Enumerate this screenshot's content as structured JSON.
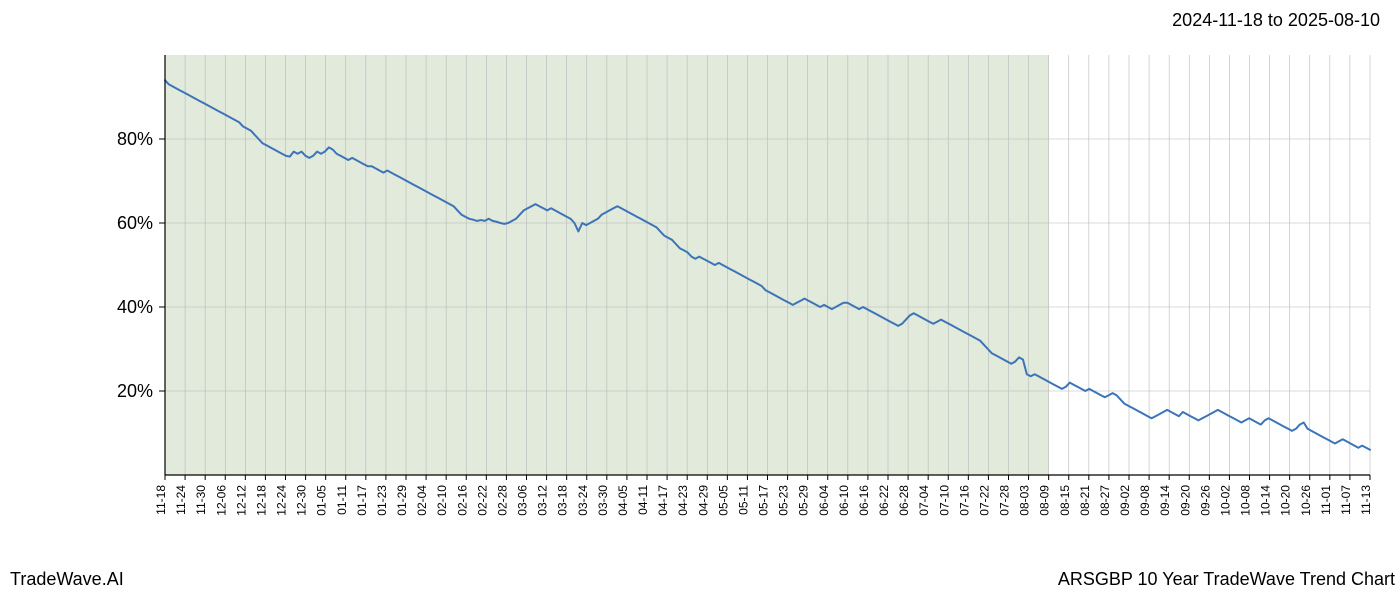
{
  "header": {
    "date_range": "2024-11-18 to 2025-08-10"
  },
  "footer": {
    "brand": "TradeWave.AI",
    "chart_title": "ARSGBP 10 Year TradeWave Trend Chart"
  },
  "chart": {
    "type": "line",
    "background_color": "#ffffff",
    "shaded_region": {
      "fill": "#e1eadb",
      "opacity": 1.0,
      "x_start_index": 0,
      "x_end_index": 44
    },
    "axis_color": "#000000",
    "grid_color": "#b8b8b8",
    "line_color": "#3d74b8",
    "line_width": 2,
    "y_axis": {
      "min": 0,
      "max": 100,
      "ticks": [
        20,
        40,
        60,
        80
      ],
      "tick_labels": [
        "20%",
        "40%",
        "60%",
        "80%"
      ],
      "label_fontsize": 18
    },
    "x_axis": {
      "labels": [
        "11-18",
        "11-24",
        "11-30",
        "12-06",
        "12-12",
        "12-18",
        "12-24",
        "12-30",
        "01-05",
        "01-11",
        "01-17",
        "01-23",
        "01-29",
        "02-04",
        "02-10",
        "02-16",
        "02-22",
        "02-28",
        "03-06",
        "03-12",
        "03-18",
        "03-24",
        "03-30",
        "04-05",
        "04-11",
        "04-17",
        "04-23",
        "04-29",
        "05-05",
        "05-11",
        "05-17",
        "05-23",
        "05-29",
        "06-04",
        "06-10",
        "06-16",
        "06-22",
        "06-28",
        "07-04",
        "07-10",
        "07-16",
        "07-22",
        "07-28",
        "08-03",
        "08-09",
        "08-15",
        "08-21",
        "08-27",
        "09-02",
        "09-08",
        "09-14",
        "09-20",
        "09-26",
        "10-02",
        "10-08",
        "10-14",
        "10-20",
        "10-26",
        "11-01",
        "11-07",
        "11-13"
      ],
      "label_fontsize": 12,
      "label_rotation": -90
    },
    "series": {
      "values": [
        94,
        93,
        92.5,
        92,
        91.5,
        91,
        90.5,
        90,
        89.5,
        89,
        88.5,
        88,
        87.5,
        87,
        86.5,
        86,
        85.5,
        85,
        84.5,
        84,
        83,
        82.5,
        82,
        81,
        80,
        79,
        78.5,
        78,
        77.5,
        77,
        76.5,
        76,
        75.8,
        77,
        76.5,
        77,
        76,
        75.5,
        76,
        77,
        76.5,
        77,
        78,
        77.5,
        76.5,
        76,
        75.5,
        75,
        75.5,
        75,
        74.5,
        74,
        73.5,
        73.5,
        73,
        72.5,
        72,
        72.5,
        72,
        71.5,
        71,
        70.5,
        70,
        69.5,
        69,
        68.5,
        68,
        67.5,
        67,
        66.5,
        66,
        65.5,
        65,
        64.5,
        64,
        63,
        62,
        61.5,
        61,
        60.8,
        60.5,
        60.7,
        60.5,
        61,
        60.5,
        60.3,
        60,
        59.8,
        60,
        60.5,
        61,
        62,
        63,
        63.5,
        64,
        64.5,
        64,
        63.5,
        63,
        63.5,
        63,
        62.5,
        62,
        61.5,
        61,
        60,
        58,
        60,
        59.5,
        60,
        60.5,
        61,
        62,
        62.5,
        63,
        63.5,
        64,
        63.5,
        63,
        62.5,
        62,
        61.5,
        61,
        60.5,
        60,
        59.5,
        59,
        58,
        57,
        56.5,
        56,
        55,
        54,
        53.5,
        53,
        52,
        51.5,
        52,
        51.5,
        51,
        50.5,
        50,
        50.5,
        50,
        49.5,
        49,
        48.5,
        48,
        47.5,
        47,
        46.5,
        46,
        45.5,
        45,
        44,
        43.5,
        43,
        42.5,
        42,
        41.5,
        41,
        40.5,
        41,
        41.5,
        42,
        41.5,
        41,
        40.5,
        40,
        40.5,
        40,
        39.5,
        40,
        40.5,
        41,
        41,
        40.5,
        40,
        39.5,
        40,
        39.5,
        39,
        38.5,
        38,
        37.5,
        37,
        36.5,
        36,
        35.5,
        36,
        37,
        38,
        38.5,
        38,
        37.5,
        37,
        36.5,
        36,
        36.5,
        37,
        36.5,
        36,
        35.5,
        35,
        34.5,
        34,
        33.5,
        33,
        32.5,
        32,
        31,
        30,
        29,
        28.5,
        28,
        27.5,
        27,
        26.5,
        27,
        28,
        27.5,
        24,
        23.5,
        24,
        23.5,
        23,
        22.5,
        22,
        21.5,
        21,
        20.5,
        21,
        22,
        21.5,
        21,
        20.5,
        20,
        20.5,
        20,
        19.5,
        19,
        18.5,
        19,
        19.5,
        19,
        18,
        17,
        16.5,
        16,
        15.5,
        15,
        14.5,
        14,
        13.5,
        14,
        14.5,
        15,
        15.5,
        15,
        14.5,
        14,
        15,
        14.5,
        14,
        13.5,
        13,
        13.5,
        14,
        14.5,
        15,
        15.5,
        15,
        14.5,
        14,
        13.5,
        13,
        12.5,
        13,
        13.5,
        13,
        12.5,
        12,
        13,
        13.5,
        13,
        12.5,
        12,
        11.5,
        11,
        10.5,
        11,
        12,
        12.5,
        11,
        10.5,
        10,
        9.5,
        9,
        8.5,
        8,
        7.5,
        8,
        8.5,
        8,
        7.5,
        7,
        6.5,
        7,
        6.5,
        6
      ]
    }
  }
}
